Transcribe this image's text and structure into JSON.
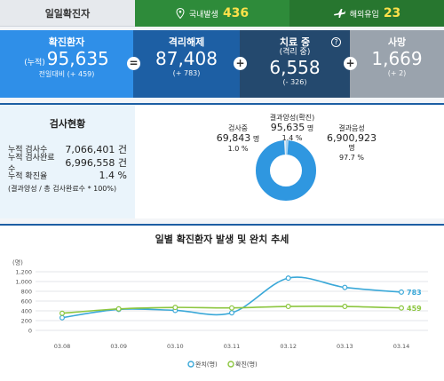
{
  "daily": {
    "label": "일일확진자",
    "domestic_label": "국내발생",
    "domestic_value": "436",
    "overseas_label": "해외유입",
    "overseas_value": "23"
  },
  "summary": {
    "confirmed": {
      "title": "확진환자",
      "prefix": "(누적)",
      "value": "95,635",
      "sub": "전일대비 (+ 459)"
    },
    "released": {
      "title": "격리해제",
      "value": "87,408",
      "sub": "(+ 783)"
    },
    "treating": {
      "title": "치료 중",
      "title2": "(격리 중)",
      "value": "6,558",
      "sub": "(- 326)",
      "help": "?"
    },
    "deaths": {
      "title": "사망",
      "value": "1,669",
      "sub": "(+ 2)"
    },
    "op_eq": "=",
    "op_plus": "+"
  },
  "tests": {
    "title": "검사현황",
    "rows": [
      {
        "k": "누적 검사수",
        "v": "7,066,401 건"
      },
      {
        "k": "누적 검사완료수",
        "v": "6,996,558 건"
      },
      {
        "k": "누적 확진율",
        "v": "1.4 %"
      }
    ],
    "note": "(결과양성 / 총 검사완료수 * 100%)",
    "donut": {
      "testing_label": "검사중",
      "testing_value": "69,843",
      "testing_unit": "명",
      "testing_pct": "1.0 %",
      "positive_label": "결과양성(확진)",
      "positive_value": "95,635",
      "positive_unit": "명",
      "positive_pct": "1.4 %",
      "negative_label": "결과음성",
      "negative_value": "6,900,923",
      "negative_unit": "명",
      "negative_pct": "97.7 %",
      "colors": {
        "negative": "#2f97e0",
        "positive": "#a8d4f2",
        "testing": "#dfeaf3"
      }
    }
  },
  "chart_data": {
    "type": "line",
    "title": "일별 확진환자 발생 및 완치 추세",
    "ylabel": "(명)",
    "categories": [
      "03.08",
      "03.09",
      "03.10",
      "03.11",
      "03.12",
      "03.13",
      "03.14"
    ],
    "ylim": [
      0,
      1200
    ],
    "yticks": [
      "1,200",
      "1,000",
      "800",
      "600",
      "400",
      "200",
      "0"
    ],
    "series": [
      {
        "name": "완치(명)",
        "color": "#3aa8d8",
        "values": [
          260,
          430,
          410,
          360,
          1070,
          880,
          783
        ],
        "end_label": "783"
      },
      {
        "name": "확진(명)",
        "color": "#8cc63f",
        "values": [
          350,
          440,
          470,
          460,
          490,
          490,
          459
        ],
        "end_label": "459"
      }
    ]
  }
}
